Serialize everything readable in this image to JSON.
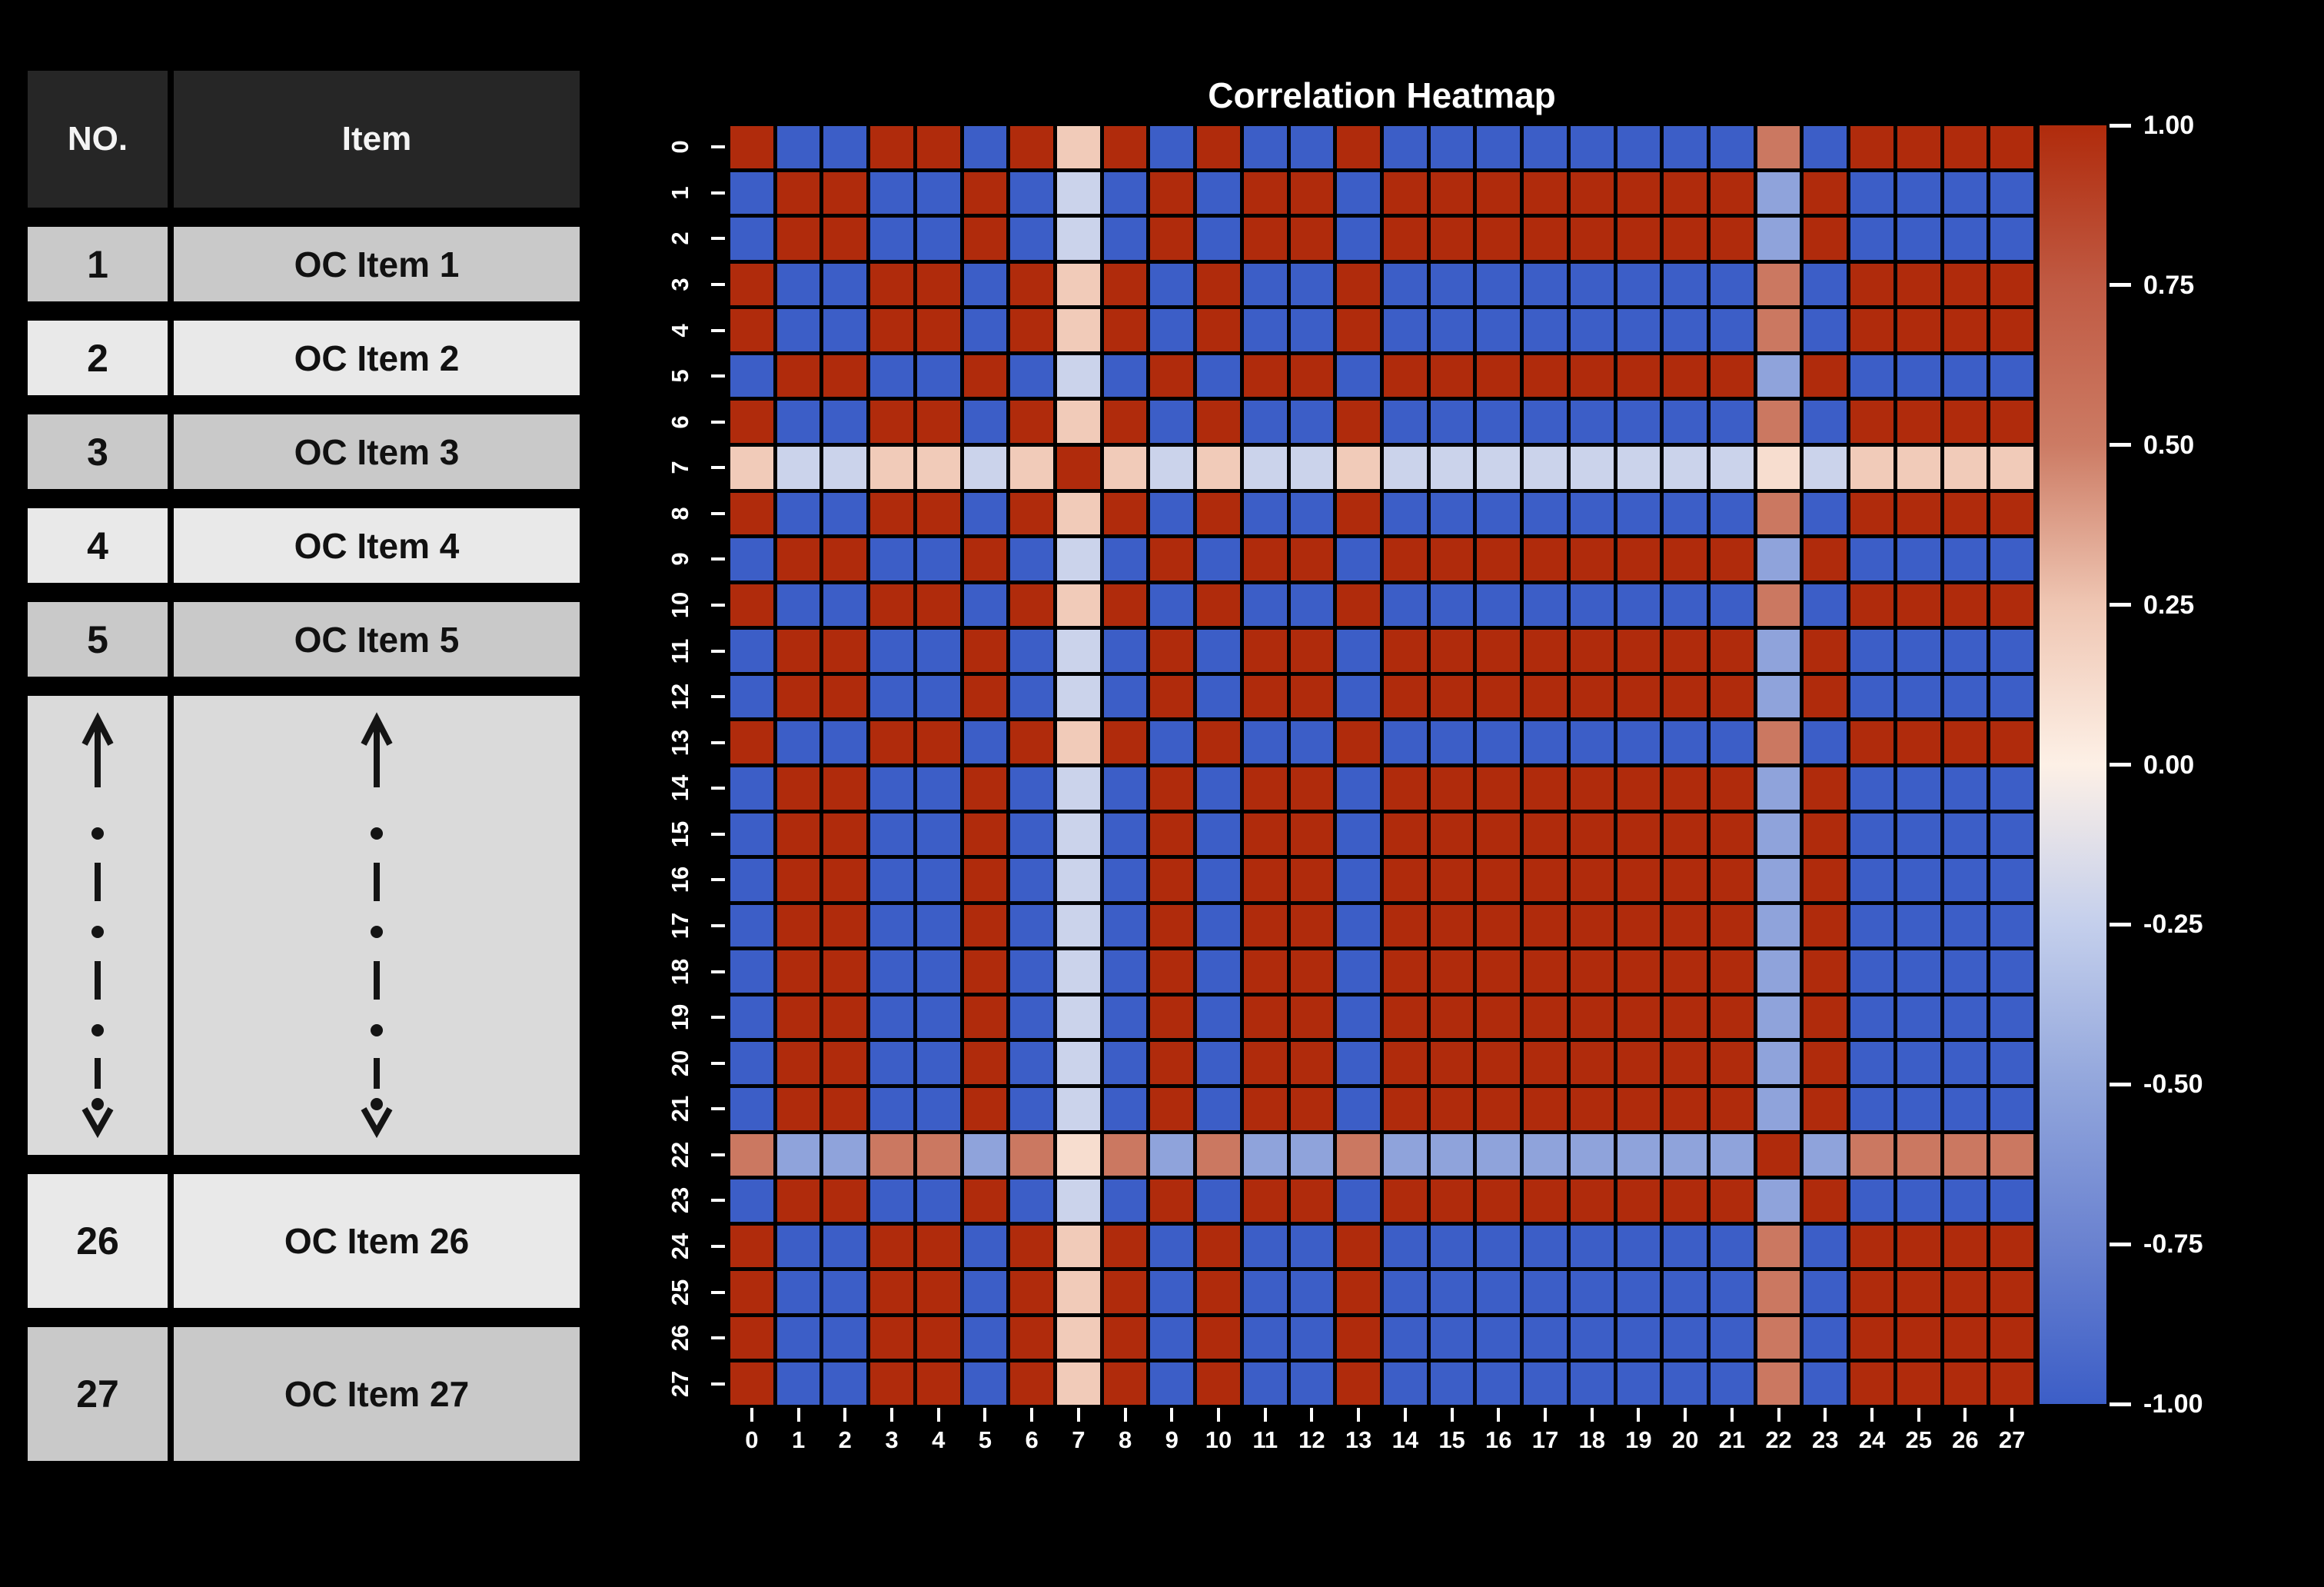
{
  "window": {
    "background": "#000000"
  },
  "table": {
    "headers": {
      "no": "NO.",
      "item": "Item"
    },
    "rows": [
      {
        "no": "1",
        "item": "OC Item 1"
      },
      {
        "no": "2",
        "item": "OC Item 2"
      },
      {
        "no": "3",
        "item": "OC Item 3"
      },
      {
        "no": "4",
        "item": "OC Item 4"
      },
      {
        "no": "5",
        "item": "OC Item 5"
      },
      {
        "no": "26",
        "item": "OC Item 26"
      },
      {
        "no": "27",
        "item": "OC Item 27"
      }
    ],
    "collapsed_rows_indicator": "vertical dashed double-headed arrow between item 5 and item 26"
  },
  "chart_data": {
    "type": "heatmap",
    "title": "Correlation Heatmap",
    "x_labels": [
      "0",
      "1",
      "2",
      "3",
      "4",
      "5",
      "6",
      "7",
      "8",
      "9",
      "10",
      "11",
      "12",
      "13",
      "14",
      "15",
      "16",
      "17",
      "18",
      "19",
      "20",
      "21",
      "22",
      "23",
      "24",
      "25",
      "26",
      "27"
    ],
    "y_labels": [
      "0",
      "1",
      "2",
      "3",
      "4",
      "5",
      "6",
      "7",
      "8",
      "9",
      "10",
      "11",
      "12",
      "13",
      "14",
      "15",
      "16",
      "17",
      "18",
      "19",
      "20",
      "21",
      "22",
      "23",
      "24",
      "25",
      "26",
      "27"
    ],
    "grid": {
      "rows": 28,
      "cols": 28,
      "gridlines": "black"
    },
    "matrix_rule": "value[i][j] = weights[i] * weights[j]; value[i][i] = 1.0",
    "weights": [
      1,
      -1,
      -1,
      1,
      1,
      -1,
      1,
      0.22,
      1,
      -1,
      1,
      -1,
      -1,
      1,
      -1,
      -1,
      -1,
      -1,
      -1,
      -1,
      -1,
      -1,
      0.52,
      -1,
      1,
      1,
      1,
      1
    ],
    "value_range": [
      -1,
      1
    ],
    "colorbar_ticks": [
      "1.00",
      "0.75",
      "0.50",
      "0.25",
      "0.00",
      "-0.25",
      "-0.50",
      "-0.75",
      "-1.00"
    ],
    "legend_position": "right-colorbar",
    "colormap_stops": [
      {
        "v": 1.0,
        "color": "#b02b0c"
      },
      {
        "v": 0.75,
        "color": "#c05a43"
      },
      {
        "v": 0.5,
        "color": "#cc7b64"
      },
      {
        "v": 0.25,
        "color": "#efc6b3"
      },
      {
        "v": 0.0,
        "color": "#fdf0e6"
      },
      {
        "v": -0.25,
        "color": "#c4cfec"
      },
      {
        "v": -0.5,
        "color": "#92a6dc"
      },
      {
        "v": -0.75,
        "color": "#6a82d0"
      },
      {
        "v": -1.0,
        "color": "#3c5ec7"
      }
    ]
  }
}
